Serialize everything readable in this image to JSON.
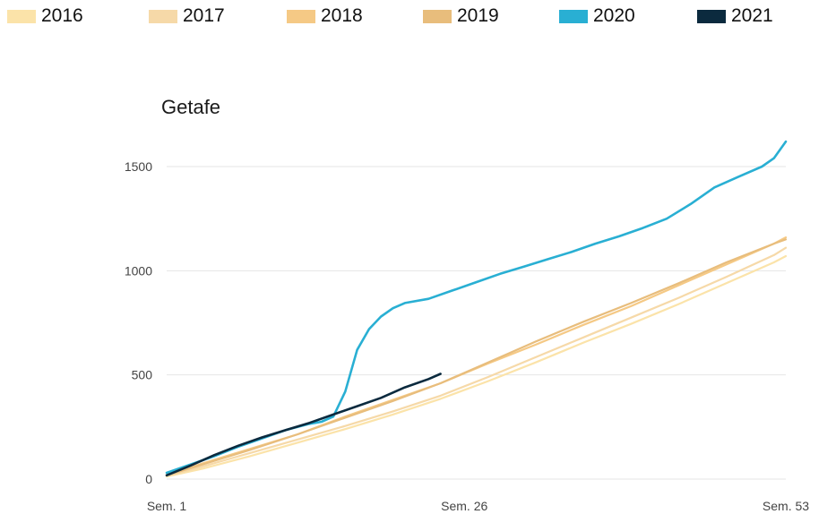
{
  "chart_data": {
    "type": "line",
    "title": "Getafe",
    "xlabel": "",
    "ylabel": "",
    "xlim": [
      1,
      53
    ],
    "ylim": [
      0,
      1650
    ],
    "grid": true,
    "legend_position": "top",
    "x_ticks": [
      {
        "value": 1,
        "label": "Sem. 1"
      },
      {
        "value": 26,
        "label": "Sem. 26"
      },
      {
        "value": 53,
        "label": "Sem. 53"
      }
    ],
    "y_ticks": [
      {
        "value": 0,
        "label": "0"
      },
      {
        "value": 500,
        "label": "500"
      },
      {
        "value": 1000,
        "label": "1000"
      },
      {
        "value": 1500,
        "label": "1500"
      }
    ],
    "series": [
      {
        "name": "2016",
        "color": "#fbe3a9",
        "points": [
          [
            1,
            12
          ],
          [
            4,
            50
          ],
          [
            8,
            110
          ],
          [
            12,
            175
          ],
          [
            16,
            240
          ],
          [
            20,
            310
          ],
          [
            24,
            385
          ],
          [
            28,
            470
          ],
          [
            32,
            560
          ],
          [
            36,
            655
          ],
          [
            40,
            745
          ],
          [
            44,
            840
          ],
          [
            48,
            940
          ],
          [
            52,
            1040
          ],
          [
            53,
            1070
          ]
        ]
      },
      {
        "name": "2017",
        "color": "#f6d9a8",
        "points": [
          [
            1,
            15
          ],
          [
            4,
            60
          ],
          [
            8,
            125
          ],
          [
            12,
            190
          ],
          [
            16,
            255
          ],
          [
            20,
            325
          ],
          [
            24,
            400
          ],
          [
            28,
            490
          ],
          [
            32,
            585
          ],
          [
            36,
            680
          ],
          [
            40,
            775
          ],
          [
            44,
            870
          ],
          [
            48,
            970
          ],
          [
            52,
            1075
          ],
          [
            53,
            1110
          ]
        ]
      },
      {
        "name": "2018",
        "color": "#f5c985",
        "points": [
          [
            1,
            20
          ],
          [
            4,
            75
          ],
          [
            8,
            145
          ],
          [
            12,
            215
          ],
          [
            16,
            300
          ],
          [
            20,
            380
          ],
          [
            24,
            460
          ],
          [
            28,
            555
          ],
          [
            32,
            645
          ],
          [
            36,
            740
          ],
          [
            40,
            830
          ],
          [
            44,
            930
          ],
          [
            48,
            1030
          ],
          [
            52,
            1130
          ],
          [
            53,
            1160
          ]
        ]
      },
      {
        "name": "2019",
        "color": "#e8bd7c",
        "points": [
          [
            1,
            18
          ],
          [
            4,
            70
          ],
          [
            8,
            140
          ],
          [
            12,
            215
          ],
          [
            16,
            295
          ],
          [
            20,
            375
          ],
          [
            24,
            460
          ],
          [
            28,
            560
          ],
          [
            32,
            660
          ],
          [
            36,
            755
          ],
          [
            40,
            845
          ],
          [
            44,
            940
          ],
          [
            48,
            1040
          ],
          [
            52,
            1130
          ],
          [
            53,
            1150
          ]
        ]
      },
      {
        "name": "2020",
        "color": "#29afd3",
        "points": [
          [
            1,
            30
          ],
          [
            3,
            70
          ],
          [
            5,
            110
          ],
          [
            7,
            155
          ],
          [
            9,
            195
          ],
          [
            11,
            235
          ],
          [
            13,
            265
          ],
          [
            14,
            275
          ],
          [
            15,
            300
          ],
          [
            16,
            420
          ],
          [
            17,
            620
          ],
          [
            18,
            720
          ],
          [
            19,
            780
          ],
          [
            20,
            820
          ],
          [
            21,
            845
          ],
          [
            23,
            865
          ],
          [
            25,
            905
          ],
          [
            27,
            945
          ],
          [
            29,
            985
          ],
          [
            31,
            1020
          ],
          [
            33,
            1055
          ],
          [
            35,
            1090
          ],
          [
            37,
            1130
          ],
          [
            39,
            1165
          ],
          [
            41,
            1205
          ],
          [
            43,
            1250
          ],
          [
            45,
            1320
          ],
          [
            47,
            1400
          ],
          [
            49,
            1450
          ],
          [
            51,
            1500
          ],
          [
            52,
            1540
          ],
          [
            53,
            1620
          ]
        ]
      },
      {
        "name": "2021",
        "color": "#0b2a3e",
        "points": [
          [
            1,
            18
          ],
          [
            3,
            65
          ],
          [
            5,
            115
          ],
          [
            7,
            160
          ],
          [
            9,
            200
          ],
          [
            11,
            235
          ],
          [
            13,
            270
          ],
          [
            15,
            310
          ],
          [
            17,
            350
          ],
          [
            19,
            390
          ],
          [
            21,
            440
          ],
          [
            23,
            480
          ],
          [
            24,
            505
          ]
        ]
      }
    ]
  }
}
